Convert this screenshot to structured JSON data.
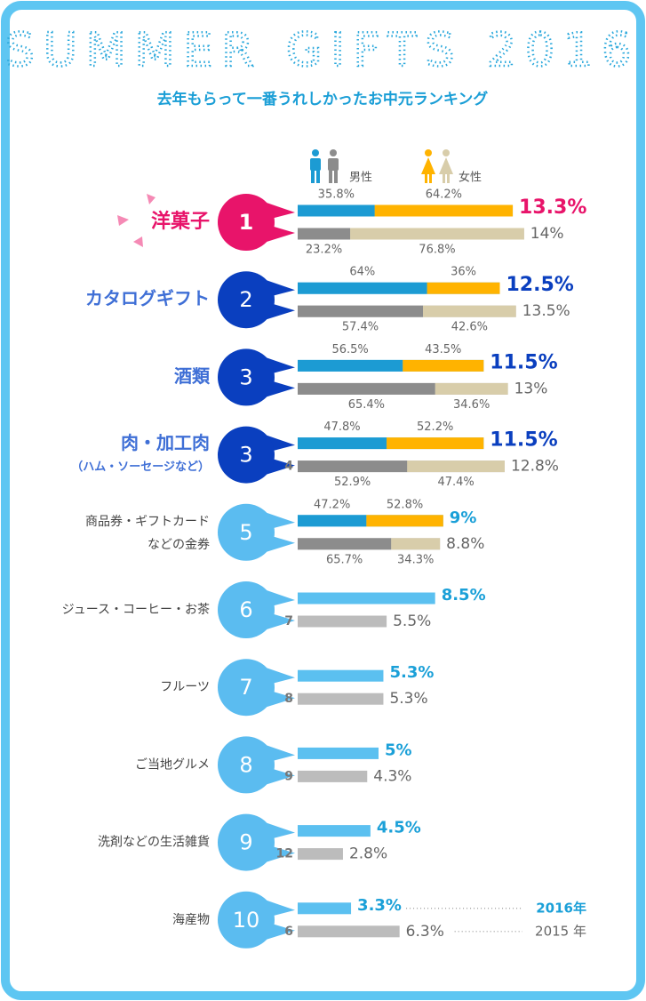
{
  "chart_data": {
    "type": "ranking-bar",
    "title": "SUMMER GIFTS 2016",
    "subtitle": "去年もらって一番うれしかったお中元ランキング",
    "legend": {
      "male": "男性",
      "female": "女性"
    },
    "categories": [
      [
        "洋菓子"
      ],
      [
        "カタログギフト"
      ],
      [
        "酒類"
      ],
      [
        "肉・加工肉",
        "（ハム・ソーセージなど）"
      ],
      [
        "商品券・ギフトカード",
        "などの金券"
      ],
      [
        "ジュース・コーヒー・お茶"
      ],
      [
        "フルーツ"
      ],
      [
        "ご当地グルメ"
      ],
      [
        "洗剤などの生活雑貨"
      ],
      [
        "海産物"
      ]
    ],
    "ranks": [
      1,
      2,
      3,
      3,
      5,
      6,
      7,
      8,
      9,
      10
    ],
    "ranks_2015": [
      null,
      null,
      null,
      4,
      null,
      7,
      8,
      9,
      12,
      6
    ],
    "series": [
      {
        "name": "2016年",
        "color": "#5bc0f0",
        "values": [
          13.3,
          12.5,
          11.5,
          11.5,
          9,
          8.5,
          5.3,
          5,
          4.5,
          3.3
        ],
        "value_labels": [
          "13.3%",
          "12.5%",
          "11.5%",
          "11.5%",
          "9%",
          "8.5%",
          "5.3%",
          "5%",
          "4.5%",
          "3.3%"
        ]
      },
      {
        "name": "2015 年",
        "color": "#bcbcbc",
        "values": [
          14,
          13.5,
          13,
          12.8,
          8.8,
          5.5,
          5.3,
          4.3,
          2.8,
          6.3
        ],
        "value_labels": [
          "14%",
          "13.5%",
          "13%",
          "12.8%",
          "8.8%",
          "5.5%",
          "5.3%",
          "4.3%",
          "2.8%",
          "6.3%"
        ]
      }
    ],
    "gender_2016": {
      "male": [
        35.8,
        64,
        56.5,
        47.8,
        47.2
      ],
      "male_labels": [
        "35.8%",
        "64%",
        "56.5%",
        "47.8%",
        "47.2%"
      ],
      "female": [
        64.2,
        36,
        43.5,
        52.2,
        52.8
      ],
      "female_labels": [
        "64.2%",
        "36%",
        "43.5%",
        "52.2%",
        "52.8%"
      ],
      "male_color": "#1c9bd3",
      "female_color": "#ffb300"
    },
    "gender_2015": {
      "male": [
        23.2,
        57.4,
        65.4,
        52.9,
        65.7
      ],
      "male_labels": [
        "23.2%",
        "57.4%",
        "65.4%",
        "52.9%",
        "65.7%"
      ],
      "female": [
        76.8,
        42.6,
        34.6,
        47.4,
        34.3
      ],
      "female_labels": [
        "76.8%",
        "42.6%",
        "34.6%",
        "47.4%",
        "34.3%"
      ],
      "male_color": "#8c8c8c",
      "female_color": "#d8cdaa"
    }
  }
}
